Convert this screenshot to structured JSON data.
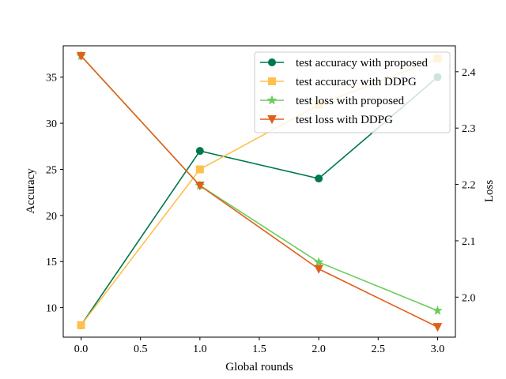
{
  "chart_data": {
    "type": "line",
    "x": [
      0.0,
      1.0,
      2.0,
      3.0
    ],
    "xlabel": "Global rounds",
    "ylabel_left": "Accuracy",
    "ylabel_right": "Loss",
    "xlim": [
      -0.15,
      3.15
    ],
    "ylim_left": [
      6.8,
      38.4
    ],
    "ylim_right": [
      1.929,
      2.446
    ],
    "xticks": [
      "0.0",
      "0.5",
      "1.0",
      "1.5",
      "2.0",
      "2.5",
      "3.0"
    ],
    "yticks_left": [
      "10",
      "15",
      "20",
      "25",
      "30",
      "35"
    ],
    "yticks_right": [
      "2.0",
      "2.1",
      "2.2",
      "2.3",
      "2.4"
    ],
    "legend_position": "upper right",
    "grid": false,
    "series": [
      {
        "name": "test accuracy with proposed",
        "axis": "left",
        "values": [
          8.1,
          27.0,
          24.0,
          35.0
        ],
        "color": "#00784a",
        "marker": "circle"
      },
      {
        "name": "test accuracy with DDPG",
        "axis": "left",
        "values": [
          8.1,
          25.0,
          32.0,
          37.0
        ],
        "color": "#ffc04c",
        "marker": "square"
      },
      {
        "name": "test loss with proposed",
        "axis": "right",
        "values": [
          2.428,
          2.198,
          2.062,
          1.976
        ],
        "color": "#6acd5a",
        "marker": "star"
      },
      {
        "name": "test loss with DDPG",
        "axis": "right",
        "values": [
          2.428,
          2.198,
          2.05,
          1.947
        ],
        "color": "#e0601a",
        "marker": "triangle-down"
      }
    ]
  }
}
